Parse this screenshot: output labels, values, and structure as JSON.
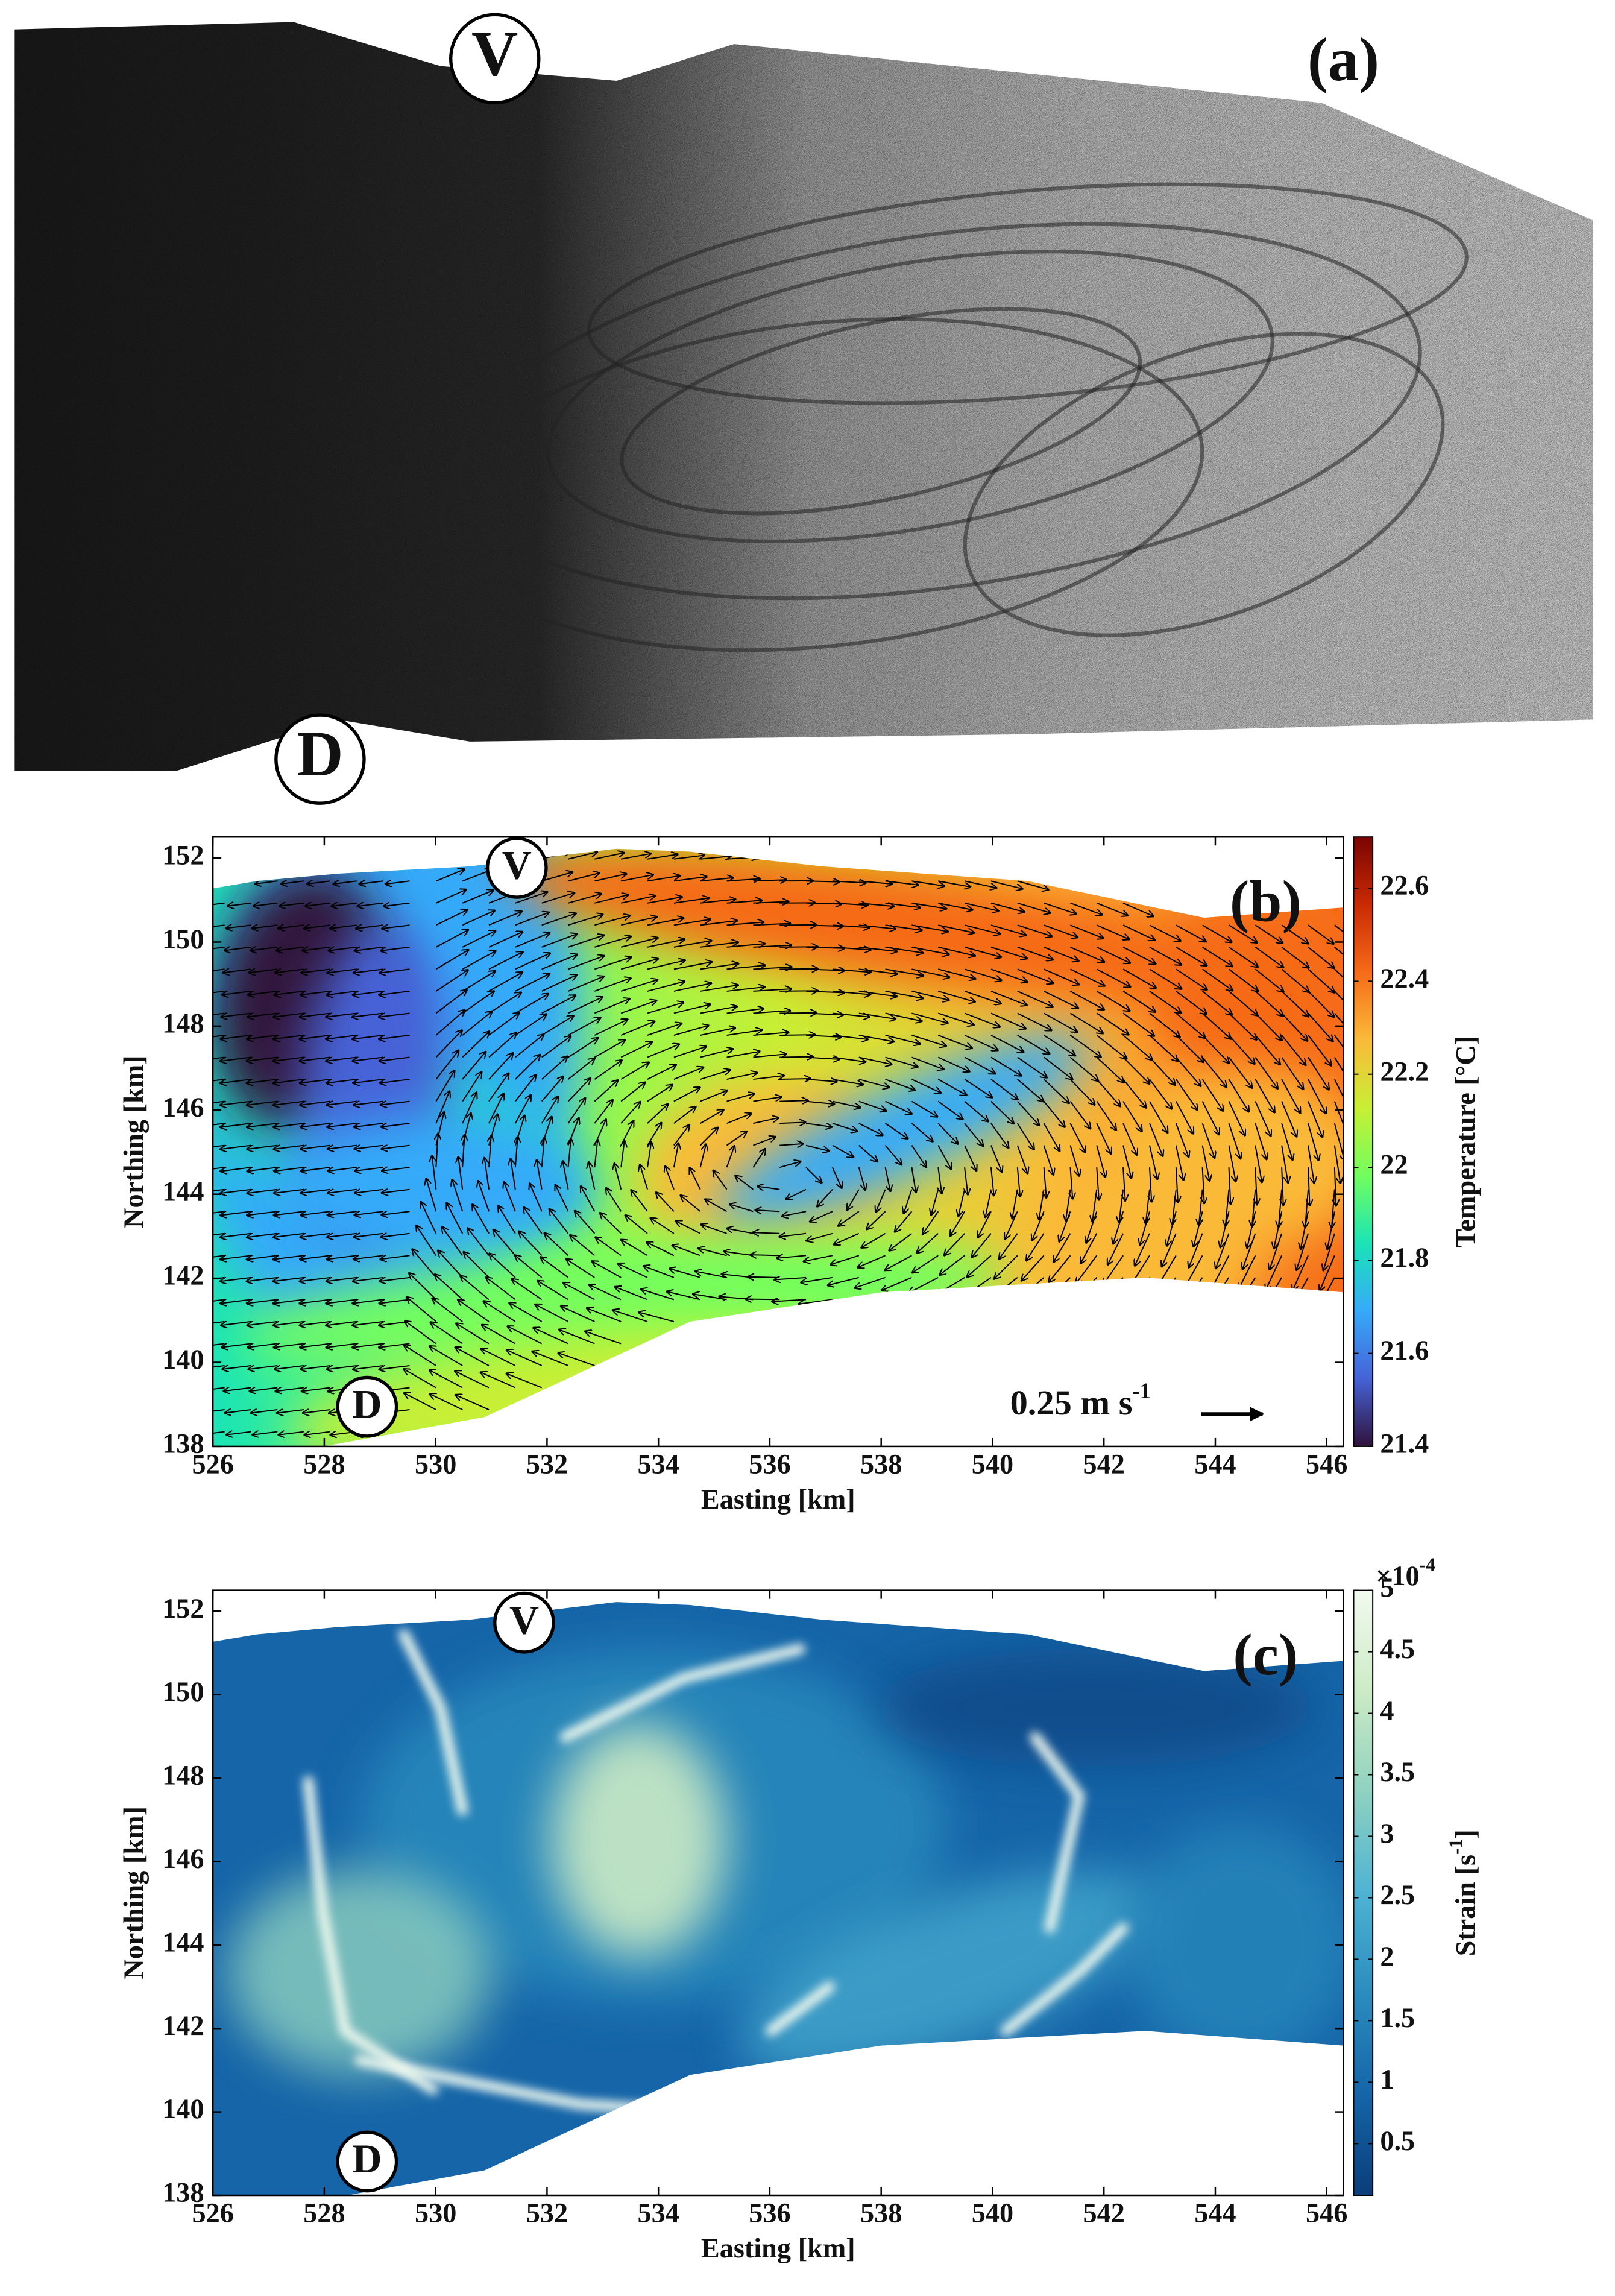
{
  "chart_data": [
    {
      "type": "image",
      "panel_label": "(a)",
      "annotations": [
        "V",
        "D"
      ]
    },
    {
      "type": "quiver-map",
      "panel_label": "(b)",
      "annotations": [
        "V",
        "D"
      ],
      "scale_label": "0.25 m s",
      "scale_label_sup": "-1",
      "xlabel": "Easting [km]",
      "ylabel": "Northing [km]",
      "xlim": [
        526,
        546.3
      ],
      "xticks": [
        526,
        528,
        530,
        532,
        534,
        536,
        538,
        540,
        542,
        544,
        546
      ],
      "ylim": [
        138,
        152.5
      ],
      "yticks": [
        138,
        140,
        142,
        144,
        146,
        148,
        150,
        152
      ],
      "colorbar": {
        "label": "Temperature [°C]",
        "lim": [
          21.4,
          22.71
        ],
        "ticks": [
          21.4,
          21.6,
          21.8,
          22,
          22.2,
          22.4,
          22.6
        ],
        "colors": [
          "#30123b",
          "#4662d7",
          "#36aaf9",
          "#1ae4b6",
          "#72fe5e",
          "#c8ef34",
          "#faba39",
          "#f66b19",
          "#ca2a04",
          "#7a0403"
        ]
      }
    },
    {
      "type": "map",
      "panel_label": "(c)",
      "annotations": [
        "V",
        "D"
      ],
      "xlabel": "Easting [km]",
      "ylabel": "Northing [km]",
      "xlim": [
        526,
        546.3
      ],
      "xticks": [
        526,
        528,
        530,
        532,
        534,
        536,
        538,
        540,
        542,
        544,
        546
      ],
      "ylim": [
        138,
        152.5
      ],
      "yticks": [
        138,
        140,
        142,
        144,
        146,
        148,
        150,
        152
      ],
      "colorbar": {
        "label": "Strain [s",
        "label_sup": "-1",
        "label_end": "]",
        "exponent": "×10",
        "exponent_sup": "-4",
        "lim": [
          0.08,
          5
        ],
        "ticks": [
          0.5,
          1,
          1.5,
          2,
          2.5,
          3,
          3.5,
          4,
          4.5,
          5
        ],
        "colors": [
          "#0b3d7a",
          "#1565a8",
          "#2b8cbe",
          "#4eb3d3",
          "#8fd1c0",
          "#ccebc5",
          "#f2faf0"
        ]
      }
    }
  ]
}
